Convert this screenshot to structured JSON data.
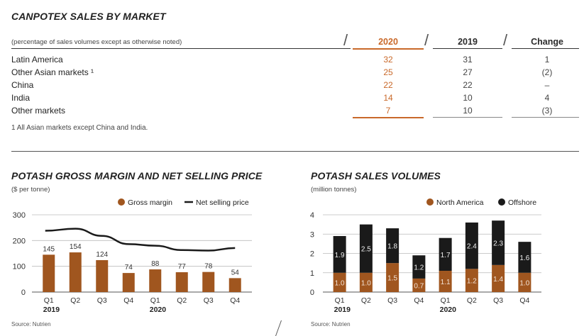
{
  "table": {
    "title": "CANPOTEX SALES BY MARKET",
    "subtitle": "(percentage of sales volumes except as otherwise noted)",
    "columns": [
      "2020",
      "2019",
      "Change"
    ],
    "rows": [
      {
        "label": "Latin America",
        "v2020": "32",
        "v2019": "31",
        "change": "1"
      },
      {
        "label": "Other Asian markets ¹",
        "v2020": "25",
        "v2019": "27",
        "change": "(2)"
      },
      {
        "label": "China",
        "v2020": "22",
        "v2019": "22",
        "change": "–"
      },
      {
        "label": "India",
        "v2020": "14",
        "v2019": "10",
        "change": "4"
      },
      {
        "label": "Other markets",
        "v2020": "7",
        "v2019": "10",
        "change": "(3)"
      }
    ],
    "footnote": "1  All Asian markets except China and India.",
    "highlight_color": "#c9692a"
  },
  "chart_data": [
    {
      "type": "bar",
      "title": "POTASH GROSS MARGIN AND NET SELLING PRICE",
      "unit": "($ per tonne)",
      "categories": [
        "Q1",
        "Q2",
        "Q3",
        "Q4",
        "Q1",
        "Q2",
        "Q3",
        "Q4"
      ],
      "year_labels": [
        "2019",
        "2020"
      ],
      "series": [
        {
          "name": "Gross margin",
          "kind": "bar",
          "color": "#a0561f",
          "values": [
            145,
            154,
            124,
            74,
            88,
            77,
            78,
            54
          ]
        },
        {
          "name": "Net selling price",
          "kind": "line",
          "color": "#1a1a1a",
          "values": [
            238,
            246,
            218,
            186,
            180,
            163,
            161,
            171
          ]
        }
      ],
      "yticks": [
        "0",
        "100",
        "200",
        "300"
      ],
      "ylim": [
        0,
        300
      ],
      "legend": "top-right",
      "source": "Source: Nutrien"
    },
    {
      "type": "bar",
      "title": "POTASH SALES VOLUMES",
      "unit": "(million tonnes)",
      "categories": [
        "Q1",
        "Q2",
        "Q3",
        "Q4",
        "Q1",
        "Q2",
        "Q3",
        "Q4"
      ],
      "year_labels": [
        "2019",
        "2020"
      ],
      "stacked": true,
      "series": [
        {
          "name": "North America",
          "color": "#a0561f",
          "values": [
            1.0,
            1.0,
            1.5,
            0.7,
            1.1,
            1.2,
            1.4,
            1.0
          ],
          "labels": [
            "1.0",
            "1.0",
            "1.5",
            "0.7",
            "1.1",
            "1.2",
            "1.4",
            "1.0"
          ]
        },
        {
          "name": "Offshore",
          "color": "#1a1a1a",
          "values": [
            1.9,
            2.5,
            1.8,
            1.2,
            1.7,
            2.4,
            2.3,
            1.6
          ],
          "labels": [
            "1.9",
            "2.5",
            "1.8",
            "1.2",
            "1.7",
            "2.4",
            "2.3",
            "1.6"
          ]
        }
      ],
      "yticks": [
        "0",
        "1",
        "2",
        "3",
        "4"
      ],
      "ylim": [
        0,
        4
      ],
      "legend": "top-right",
      "source": "Source: Nutrien"
    }
  ]
}
